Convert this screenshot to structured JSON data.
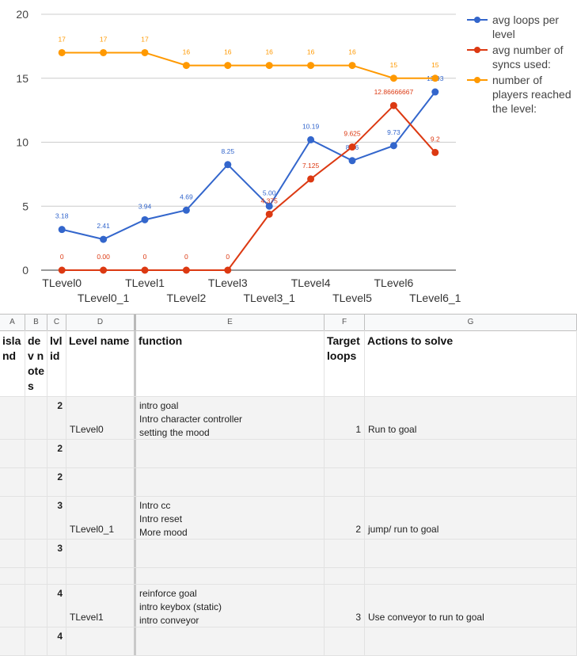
{
  "chart_data": {
    "type": "line",
    "categories": [
      "TLevel0",
      "TLevel0_1",
      "TLevel1",
      "TLevel2",
      "TLevel3",
      "TLevel3_1",
      "TLevel4",
      "TLevel5",
      "TLevel6",
      "TLevel6_1"
    ],
    "category_labels": [
      "TLevel0",
      "TLevel0_1",
      "TLevel1",
      "TLevel2",
      "TLevel3",
      "TLevel3_1",
      "TLevel4",
      "TLevel5",
      "TLevel6",
      "TLevel6_1"
    ],
    "ylim": [
      0,
      20
    ],
    "yticks": [
      "0",
      "5",
      "10",
      "15",
      "20"
    ],
    "grid": true,
    "legend_position": "right",
    "series": [
      {
        "name": "avg loops per level",
        "color": "#3366cc",
        "values": [
          3.18,
          2.41,
          3.94,
          4.69,
          8.25,
          5.0,
          10.19,
          8.56,
          9.73,
          13.93
        ],
        "labels": [
          "3.18",
          "2.41",
          "3.94",
          "4.69",
          "8.25",
          "5.00",
          "10.19",
          "8.56",
          "9.73",
          "13.93"
        ]
      },
      {
        "name": "avg number of syncs used:",
        "color": "#dc3912",
        "values": [
          0,
          0,
          0,
          0,
          0,
          4.375,
          7.125,
          9.625,
          12.86666667,
          9.2
        ],
        "labels": [
          "0",
          "0.00",
          "0",
          "0",
          "0",
          "4.375",
          "7.125",
          "9.625",
          "12.86666667",
          "9.2"
        ]
      },
      {
        "name": "number of players reached the level:",
        "color": "#ff9900",
        "values": [
          17,
          17,
          17,
          16,
          16,
          16,
          16,
          16,
          15,
          15
        ],
        "labels": [
          "17",
          "17",
          "17",
          "16",
          "16",
          "16",
          "16",
          "16",
          "15",
          "15"
        ]
      }
    ]
  },
  "sheet": {
    "columns": [
      "A",
      "B",
      "C",
      "D",
      "E",
      "F",
      "G"
    ],
    "headers": {
      "a": "island",
      "b": "dev notes",
      "c": "lvl id",
      "d": "Level name",
      "e": "function",
      "f": "Target loops",
      "g": "Actions to solve"
    },
    "rows": [
      {
        "lvl": "2",
        "name": "TLevel0",
        "function": [
          "intro goal",
          "Intro character controller",
          "setting the mood"
        ],
        "target": "1",
        "actions": "Run to goal"
      },
      {
        "lvl": "2",
        "name": "",
        "function": [],
        "target": "",
        "actions": ""
      },
      {
        "lvl": "2",
        "name": "",
        "function": [],
        "target": "",
        "actions": ""
      },
      {
        "lvl": "3",
        "name": "TLevel0_1",
        "function": [
          "Intro cc",
          "Intro reset",
          "More mood"
        ],
        "target": "2",
        "actions": "jump/ run to goal"
      },
      {
        "lvl": "3",
        "name": "",
        "function": [],
        "target": "",
        "actions": ""
      },
      {
        "lvl": "",
        "name": "",
        "function": [],
        "target": "",
        "actions": ""
      },
      {
        "lvl": "4",
        "name": "TLevel1",
        "function": [
          "reinforce goal",
          "intro keybox (static)",
          "intro conveyor"
        ],
        "target": "3",
        "actions": "Use conveyor to run to goal"
      },
      {
        "lvl": "4",
        "name": "",
        "function": [],
        "target": "",
        "actions": ""
      }
    ]
  }
}
